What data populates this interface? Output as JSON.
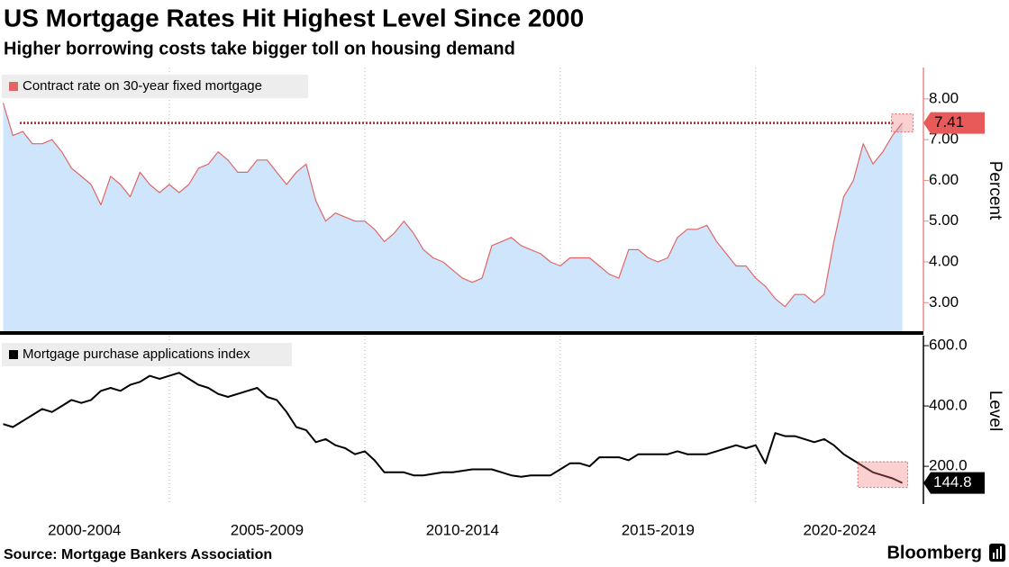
{
  "header": {
    "title": "US Mortgage Rates Hit Highest Level Since 2000",
    "subtitle": "Higher borrowing costs take bigger toll on housing demand"
  },
  "footer": {
    "source": "Source: Mortgage Bankers Association",
    "brand": "Bloomberg"
  },
  "chart_data": [
    {
      "type": "area",
      "ylabel": "Percent",
      "xlim": [
        2000.67,
        2024.29
      ],
      "xgrid": [
        2005,
        2010,
        2015,
        2020
      ],
      "ylim": [
        2.3,
        8.77
      ],
      "yticks": [
        {
          "value": 3,
          "label": "3.00"
        },
        {
          "value": 4,
          "label": "4.00"
        },
        {
          "value": 5,
          "label": "5.00"
        },
        {
          "value": 6,
          "label": "6.00"
        },
        {
          "value": 7,
          "label": "7.00"
        },
        {
          "value": 8,
          "label": "8.00"
        }
      ],
      "x": [
        2000.75,
        2001,
        2001.25,
        2001.5,
        2001.75,
        2002,
        2002.25,
        2002.5,
        2002.75,
        2003,
        2003.25,
        2003.5,
        2003.75,
        2004,
        2004.25,
        2004.5,
        2004.75,
        2005,
        2005.25,
        2005.5,
        2005.75,
        2006,
        2006.25,
        2006.5,
        2006.75,
        2007,
        2007.25,
        2007.5,
        2007.75,
        2008,
        2008.25,
        2008.5,
        2008.75,
        2009,
        2009.25,
        2009.5,
        2009.75,
        2010,
        2010.25,
        2010.5,
        2010.75,
        2011,
        2011.25,
        2011.5,
        2011.75,
        2012,
        2012.25,
        2012.5,
        2012.75,
        2013,
        2013.25,
        2013.5,
        2013.75,
        2014,
        2014.25,
        2014.5,
        2014.75,
        2015,
        2015.25,
        2015.5,
        2015.75,
        2016,
        2016.25,
        2016.5,
        2016.75,
        2017,
        2017.25,
        2017.5,
        2017.75,
        2018,
        2018.25,
        2018.5,
        2018.75,
        2019,
        2019.25,
        2019.5,
        2019.75,
        2020,
        2020.25,
        2020.5,
        2020.75,
        2021,
        2021.25,
        2021.5,
        2021.75,
        2022,
        2022.25,
        2022.5,
        2022.75,
        2023,
        2023.25,
        2023.5,
        2023.75
      ],
      "series": [
        {
          "name": "Contract rate on 30-year fixed mortgage",
          "color": "#e06666",
          "fill": "#cfe5fb",
          "values": [
            7.9,
            7.1,
            7.2,
            6.9,
            6.9,
            7.0,
            6.7,
            6.3,
            6.1,
            5.9,
            5.4,
            6.1,
            5.9,
            5.6,
            6.2,
            5.9,
            5.7,
            5.9,
            5.7,
            5.9,
            6.3,
            6.4,
            6.7,
            6.5,
            6.2,
            6.2,
            6.5,
            6.5,
            6.2,
            5.9,
            6.2,
            6.4,
            5.5,
            5.0,
            5.2,
            5.1,
            5.0,
            5.0,
            4.8,
            4.5,
            4.7,
            5.0,
            4.7,
            4.3,
            4.1,
            4.0,
            3.8,
            3.6,
            3.5,
            3.6,
            4.4,
            4.5,
            4.6,
            4.4,
            4.3,
            4.2,
            4.0,
            3.9,
            4.1,
            4.1,
            4.1,
            3.9,
            3.7,
            3.6,
            4.3,
            4.3,
            4.1,
            4.0,
            4.1,
            4.6,
            4.8,
            4.8,
            4.9,
            4.5,
            4.2,
            3.9,
            3.9,
            3.6,
            3.4,
            3.1,
            2.9,
            3.2,
            3.2,
            3.0,
            3.2,
            4.5,
            5.6,
            6.0,
            6.9,
            6.4,
            6.7,
            7.1,
            7.41
          ]
        }
      ]
    },
    {
      "type": "line",
      "ylabel": "Level",
      "xlim": [
        2000.67,
        2024.29
      ],
      "xgrid": [
        2005,
        2010,
        2015,
        2020
      ],
      "xticks": [
        {
          "value": 2002.83,
          "label": "2000-2004"
        },
        {
          "value": 2007.5,
          "label": "2005-2009"
        },
        {
          "value": 2012.5,
          "label": "2010-2014"
        },
        {
          "value": 2017.5,
          "label": "2015-2019"
        },
        {
          "value": 2022.15,
          "label": "2020-2024"
        }
      ],
      "ylim": [
        75,
        633
      ],
      "yticks": [
        {
          "value": 200,
          "label": "200.0"
        },
        {
          "value": 400,
          "label": "400.0"
        },
        {
          "value": 600,
          "label": "600.0"
        }
      ],
      "x": [
        2000.75,
        2001,
        2001.25,
        2001.5,
        2001.75,
        2002,
        2002.25,
        2002.5,
        2002.75,
        2003,
        2003.25,
        2003.5,
        2003.75,
        2004,
        2004.25,
        2004.5,
        2004.75,
        2005,
        2005.25,
        2005.5,
        2005.75,
        2006,
        2006.25,
        2006.5,
        2006.75,
        2007,
        2007.25,
        2007.5,
        2007.75,
        2008,
        2008.25,
        2008.5,
        2008.75,
        2009,
        2009.25,
        2009.5,
        2009.75,
        2010,
        2010.25,
        2010.5,
        2010.75,
        2011,
        2011.25,
        2011.5,
        2011.75,
        2012,
        2012.25,
        2012.5,
        2012.75,
        2013,
        2013.25,
        2013.5,
        2013.75,
        2014,
        2014.25,
        2014.5,
        2014.75,
        2015,
        2015.25,
        2015.5,
        2015.75,
        2016,
        2016.25,
        2016.5,
        2016.75,
        2017,
        2017.25,
        2017.5,
        2017.75,
        2018,
        2018.25,
        2018.5,
        2018.75,
        2019,
        2019.25,
        2019.5,
        2019.75,
        2020,
        2020.25,
        2020.5,
        2020.75,
        2021,
        2021.25,
        2021.5,
        2021.75,
        2022,
        2022.25,
        2022.5,
        2022.75,
        2023,
        2023.25,
        2023.5,
        2023.75
      ],
      "series": [
        {
          "name": "Mortgage purchase applications index",
          "color": "#000000",
          "values": [
            340,
            330,
            350,
            370,
            390,
            380,
            400,
            420,
            410,
            420,
            450,
            460,
            450,
            470,
            480,
            500,
            490,
            500,
            510,
            490,
            470,
            460,
            440,
            430,
            440,
            450,
            460,
            430,
            420,
            380,
            330,
            320,
            280,
            290,
            270,
            260,
            240,
            250,
            220,
            180,
            180,
            180,
            170,
            170,
            175,
            180,
            180,
            185,
            190,
            190,
            190,
            180,
            170,
            165,
            170,
            170,
            170,
            190,
            210,
            210,
            200,
            230,
            230,
            230,
            220,
            240,
            240,
            240,
            240,
            250,
            240,
            240,
            240,
            250,
            260,
            270,
            260,
            270,
            210,
            310,
            300,
            300,
            290,
            280,
            290,
            270,
            240,
            220,
            200,
            180,
            170,
            160,
            144.8
          ]
        }
      ]
    }
  ]
}
